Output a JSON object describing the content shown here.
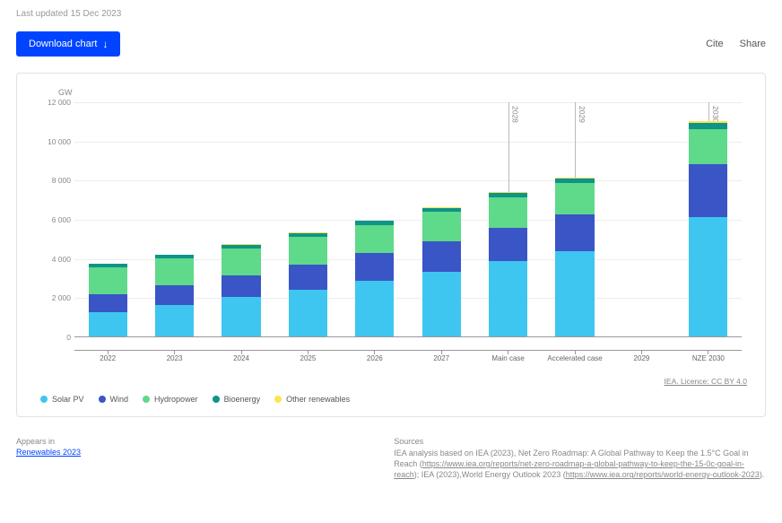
{
  "header": {
    "last_updated": "Last updated 15 Dec 2023",
    "download_label": "Download chart",
    "cite_label": "Cite",
    "share_label": "Share"
  },
  "chart": {
    "type": "stacked-bar",
    "y_axis_unit": "GW",
    "y_ticks": [
      0,
      2000,
      4000,
      6000,
      8000,
      10000,
      12000
    ],
    "y_tick_labels": [
      "0",
      "2 000",
      "4 000",
      "6 000",
      "8 000",
      "10 000",
      "12 000"
    ],
    "ymax": 12000,
    "background_color": "#ffffff",
    "grid_color": "#ececec",
    "axis_color": "#999999",
    "series": [
      {
        "key": "solar",
        "label": "Solar PV",
        "color": "#3ec6f0"
      },
      {
        "key": "wind",
        "label": "Wind",
        "color": "#3955c6"
      },
      {
        "key": "hydro",
        "label": "Hydropower",
        "color": "#5fd98a"
      },
      {
        "key": "bio",
        "label": "Bioenergy",
        "color": "#0e9488"
      },
      {
        "key": "other",
        "label": "Other renewables",
        "color": "#ffe34d"
      }
    ],
    "categories": [
      {
        "label": "2022",
        "values": {
          "solar": 1250,
          "wind": 900,
          "hydro": 1400,
          "bio": 150,
          "other": 30
        }
      },
      {
        "label": "2023",
        "values": {
          "solar": 1600,
          "wind": 1000,
          "hydro": 1400,
          "bio": 160,
          "other": 30
        }
      },
      {
        "label": "2024",
        "values": {
          "solar": 2000,
          "wind": 1100,
          "hydro": 1400,
          "bio": 170,
          "other": 35
        }
      },
      {
        "label": "2025",
        "values": {
          "solar": 2400,
          "wind": 1250,
          "hydro": 1450,
          "bio": 180,
          "other": 35
        }
      },
      {
        "label": "2026",
        "values": {
          "solar": 2850,
          "wind": 1400,
          "hydro": 1450,
          "bio": 190,
          "other": 40
        }
      },
      {
        "label": "2027",
        "values": {
          "solar": 3300,
          "wind": 1550,
          "hydro": 1500,
          "bio": 200,
          "other": 40
        }
      },
      {
        "label": "Main case",
        "values": {
          "solar": 3850,
          "wind": 1700,
          "hydro": 1550,
          "bio": 210,
          "other": 45
        },
        "vline": "2028"
      },
      {
        "label": "Accelerated case",
        "values": {
          "solar": 4350,
          "wind": 1900,
          "hydro": 1600,
          "bio": 220,
          "other": 45
        },
        "vline": "2029"
      },
      {
        "label": "2029",
        "values": null
      },
      {
        "label": "NZE 2030",
        "values": {
          "solar": 6100,
          "wind": 2700,
          "hydro": 1800,
          "bio": 280,
          "other": 120
        },
        "vline": "2030"
      }
    ],
    "licence_text": "IEA. Licence: CC BY 4.0"
  },
  "footer": {
    "appears_in_heading": "Appears in",
    "appears_in_link": "Renewables 2023",
    "sources_heading": "Sources",
    "sources_text_1": "IEA analysis based on IEA (2023), Net Zero Roadmap: A Global Pathway to Keep the 1.5°C Goal in Reach (",
    "sources_link_1": "https://www.iea.org/reports/net-zero-roadmap-a-global-pathway-to-keep-the-15-0c-goal-in-reach",
    "sources_text_2": "); IEA (2023),World Energy Outlook 2023 (",
    "sources_link_2": "https://www.iea.org/reports/world-energy-outlook-2023",
    "sources_text_3": ")."
  }
}
